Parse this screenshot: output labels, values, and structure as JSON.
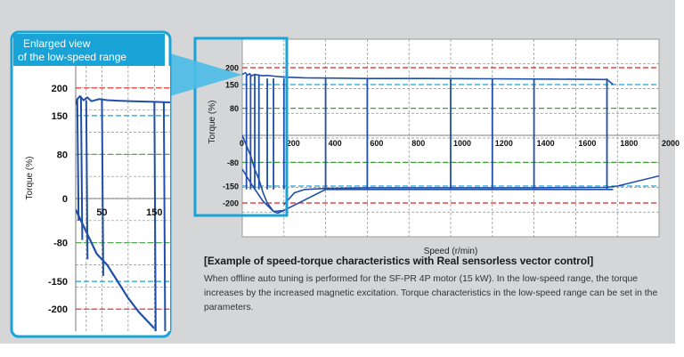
{
  "inset": {
    "title_line1": "Enlarged view",
    "title_line2": "of the low-speed range",
    "ylabel": "Torque (%)",
    "yticks": [
      "200",
      "150",
      "80",
      "0",
      "-80",
      "-150",
      "-200"
    ],
    "xticks": [
      "50",
      "150"
    ]
  },
  "caption": {
    "heading": "[Example of speed-torque characteristics with Real sensorless vector control]",
    "body": "When offline auto tuning is performed for the SF-PR 4P motor (15 kW). In the low-speed range, the torque increases by the increased magnetic excitation. Torque characteristics in the low-speed range can be set in the parameters."
  },
  "colors": {
    "curve": "#1f4fa8",
    "frame": "#1aa3d6",
    "ref_200": "#e02020",
    "ref_150": "#1aa3d6",
    "ref_80": "#3aa335"
  },
  "chart_data": [
    {
      "type": "line",
      "xlabel": "Speed (r/min)",
      "ylabel": "Torque (%)",
      "xlim": [
        0,
        2000
      ],
      "ylim": [
        -300,
        300
      ],
      "x_ticks": [
        0,
        200,
        400,
        600,
        800,
        1000,
        1200,
        1400,
        1600,
        1800,
        2000
      ],
      "x_tick_labels": [
        "0",
        "200",
        "400",
        "600",
        "800",
        "1000",
        "1200",
        "1400",
        "1600",
        "1800",
        "2000"
      ],
      "y_ticks": [
        200,
        150,
        80,
        -80,
        -150,
        -200
      ],
      "y_tick_labels": [
        "200",
        "150",
        "80",
        "-80",
        "-150",
        "-200"
      ],
      "reference_lines": [
        200,
        150,
        80,
        -80,
        -150,
        -200
      ],
      "grid": true,
      "series": [
        {
          "x": [
            0,
            15,
            25,
            35,
            45,
            60,
            80,
            100,
            120,
            150,
            200,
            300,
            600,
            900,
            1200,
            1500,
            1750,
            1780
          ],
          "values": [
            180,
            185,
            178,
            182,
            176,
            180,
            178,
            176,
            177,
            175,
            172,
            170,
            168,
            168,
            167,
            166,
            165,
            150
          ]
        },
        {
          "x": [
            0,
            20,
            40,
            60,
            80,
            100,
            120,
            150,
            170,
            200
          ],
          "values": [
            0,
            -30,
            -60,
            -100,
            -130,
            -170,
            -200,
            -225,
            -230,
            -222
          ]
        },
        {
          "x": [
            200,
            250,
            300,
            400,
            600,
            1000,
            1400,
            1750,
            1800,
            2000
          ],
          "values": [
            -205,
            -170,
            -160,
            -157,
            -155,
            -155,
            -155,
            -154,
            -150,
            -120
          ]
        },
        {
          "x": [
            0,
            50,
            100,
            150,
            200,
            400,
            600,
            800,
            1000,
            1200,
            1400,
            1600,
            1780
          ],
          "values": [
            -100,
            -150,
            -195,
            -225,
            -222,
            -160,
            -160,
            -160,
            -160,
            -160,
            -160,
            -160,
            -160
          ]
        }
      ]
    },
    {
      "type": "line",
      "title": "Enlarged view of the low-speed range",
      "ylabel": "Torque (%)",
      "xlim": [
        0,
        180
      ],
      "ylim": [
        -240,
        240
      ],
      "x_ticks": [
        50,
        150
      ],
      "x_tick_labels": [
        "50",
        "150"
      ],
      "y_ticks": [
        200,
        150,
        80,
        0,
        -80,
        -150,
        -200
      ],
      "y_tick_labels": [
        "200",
        "150",
        "80",
        "0",
        "-80",
        "-150",
        "-200"
      ],
      "grid": true
    }
  ]
}
